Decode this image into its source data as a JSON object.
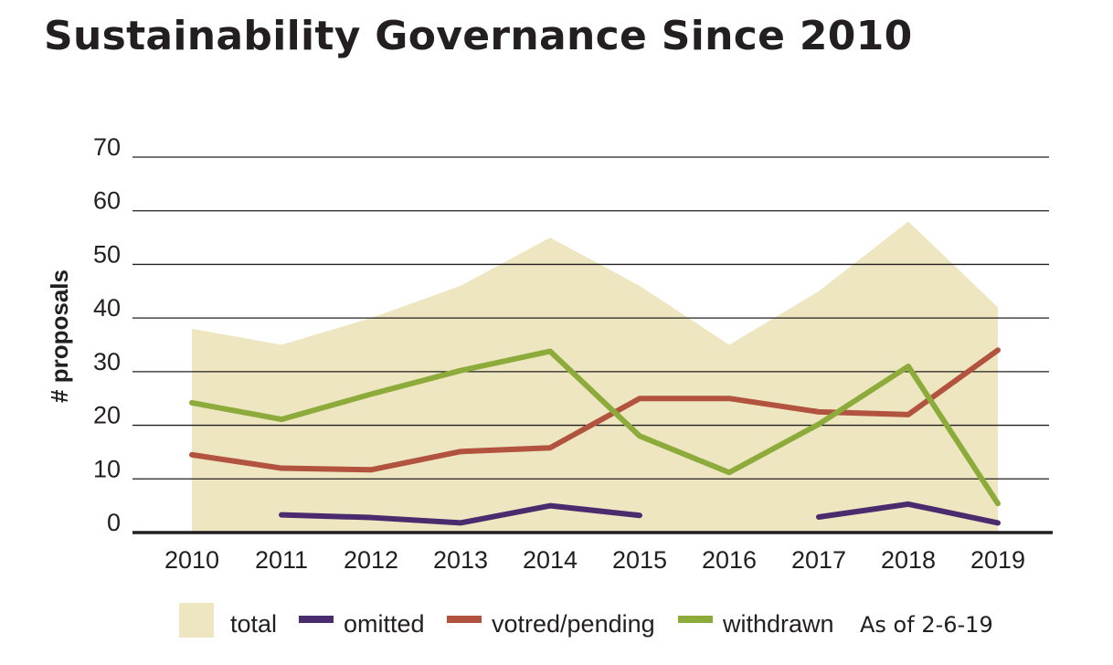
{
  "title": "Sustainability Governance Since 2010",
  "note": "As of 2-6-19",
  "colors": {
    "total": "#ede6c0",
    "omitted": "#4a2c6e",
    "voted_pending": "#b2533f",
    "withdrawn": "#8dab3a",
    "grid": "#231f20"
  },
  "chart_data": {
    "type": "area",
    "x": [
      "2010",
      "2011",
      "2012",
      "2013",
      "2014",
      "2015",
      "2016",
      "2017",
      "2018",
      "2019"
    ],
    "xlabel": "",
    "ylabel": "# proposals",
    "ylim": [
      0,
      70
    ],
    "yticks": [
      "0",
      "10",
      "20",
      "30",
      "40",
      "50",
      "60",
      "70"
    ],
    "grid": true,
    "legend_position": "bottom",
    "series": [
      {
        "name": "total",
        "kind": "area",
        "values": [
          38,
          35,
          40,
          46,
          55,
          46,
          35,
          45,
          58,
          42
        ]
      },
      {
        "name": "omitted",
        "kind": "line",
        "values": [
          null,
          3.3,
          2.8,
          1.8,
          5,
          3.2,
          null,
          2.9,
          5.3,
          1.8
        ]
      },
      {
        "name": "votred/pending",
        "kind": "line",
        "values": [
          14.5,
          12,
          11.7,
          15.1,
          15.8,
          25,
          25,
          22.5,
          22,
          34
        ]
      },
      {
        "name": "withdrawn",
        "kind": "line",
        "values": [
          24.2,
          21.1,
          25.8,
          30.2,
          33.8,
          18,
          11.2,
          20.2,
          31,
          5.4
        ]
      }
    ]
  }
}
